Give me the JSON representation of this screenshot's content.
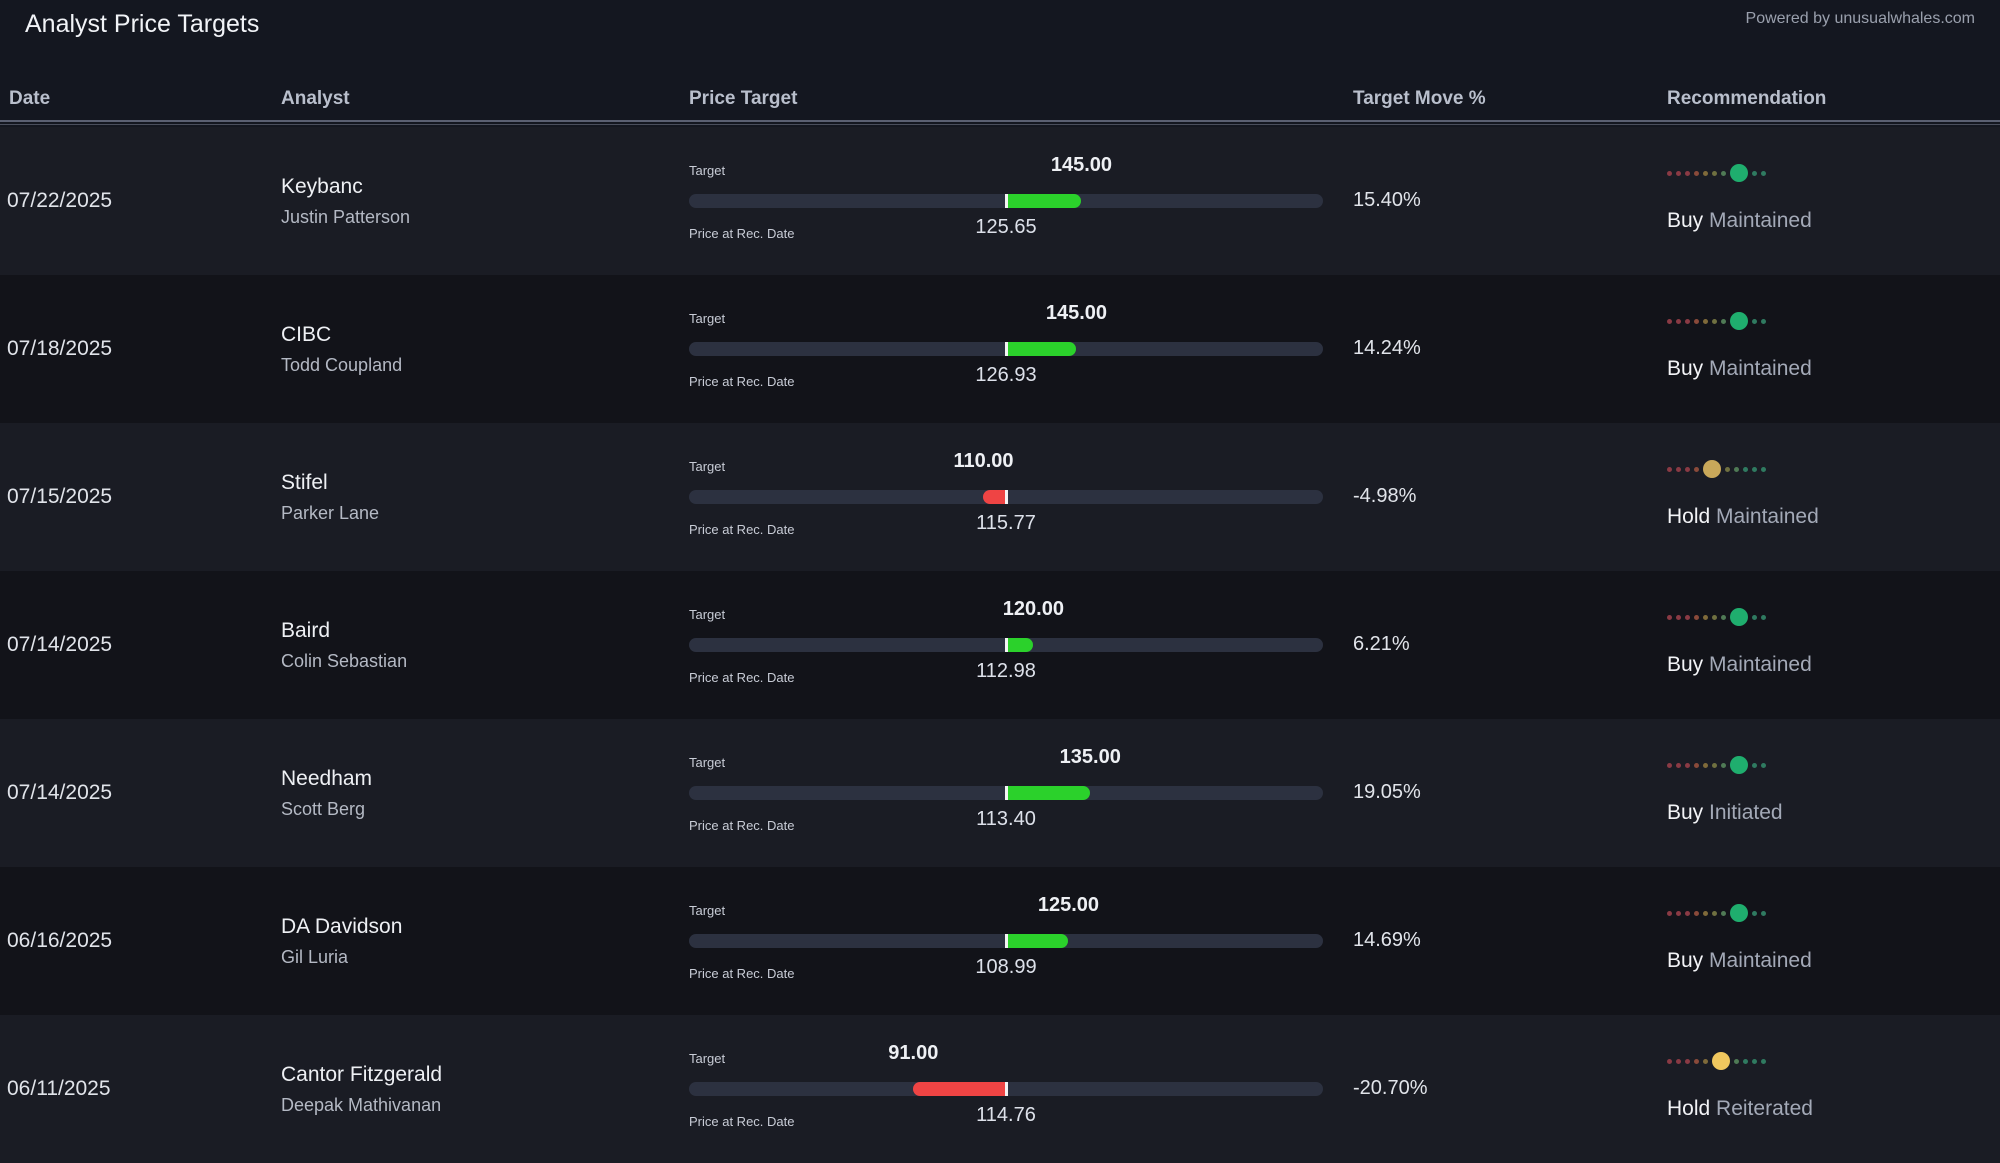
{
  "page": {
    "title": "Analyst Price Targets",
    "powered_by": "Powered by unusualwhales.com"
  },
  "columns": {
    "date": "Date",
    "analyst": "Analyst",
    "price_target": "Price Target",
    "target_move": "Target Move %",
    "recommendation": "Recommendation"
  },
  "labels": {
    "target": "Target",
    "price_at_rec": "Price at Rec. Date"
  },
  "colors": {
    "up": "#2bd12b",
    "down": "#ef4444",
    "buy_dot": "#1fae6e",
    "hold_dot": "#c9a85a",
    "hold_dot_alt": "#f0c75e"
  },
  "rows": [
    {
      "date": "07/22/2025",
      "firm": "Keybanc",
      "analyst": "Justin Patterson",
      "target": "145.00",
      "price": "125.65",
      "move": "15.40%",
      "rating": "Buy",
      "action": "Maintained",
      "rating_level": 7
    },
    {
      "date": "07/18/2025",
      "firm": "CIBC",
      "analyst": "Todd Coupland",
      "target": "145.00",
      "price": "126.93",
      "move": "14.24%",
      "rating": "Buy",
      "action": "Maintained",
      "rating_level": 7
    },
    {
      "date": "07/15/2025",
      "firm": "Stifel",
      "analyst": "Parker Lane",
      "target": "110.00",
      "price": "115.77",
      "move": "-4.98%",
      "rating": "Hold",
      "action": "Maintained",
      "rating_level": 4
    },
    {
      "date": "07/14/2025",
      "firm": "Baird",
      "analyst": "Colin Sebastian",
      "target": "120.00",
      "price": "112.98",
      "move": "6.21%",
      "rating": "Buy",
      "action": "Maintained",
      "rating_level": 7
    },
    {
      "date": "07/14/2025",
      "firm": "Needham",
      "analyst": "Scott Berg",
      "target": "135.00",
      "price": "113.40",
      "move": "19.05%",
      "rating": "Buy",
      "action": "Initiated",
      "rating_level": 7
    },
    {
      "date": "06/16/2025",
      "firm": "DA Davidson",
      "analyst": "Gil Luria",
      "target": "125.00",
      "price": "108.99",
      "move": "14.69%",
      "rating": "Buy",
      "action": "Maintained",
      "rating_level": 7
    },
    {
      "date": "06/11/2025",
      "firm": "Cantor Fitzgerald",
      "analyst": "Deepak Mathivanan",
      "target": "91.00",
      "price": "114.76",
      "move": "-20.70%",
      "rating": "Hold",
      "action": "Reiterated",
      "rating_level": 5
    }
  ]
}
